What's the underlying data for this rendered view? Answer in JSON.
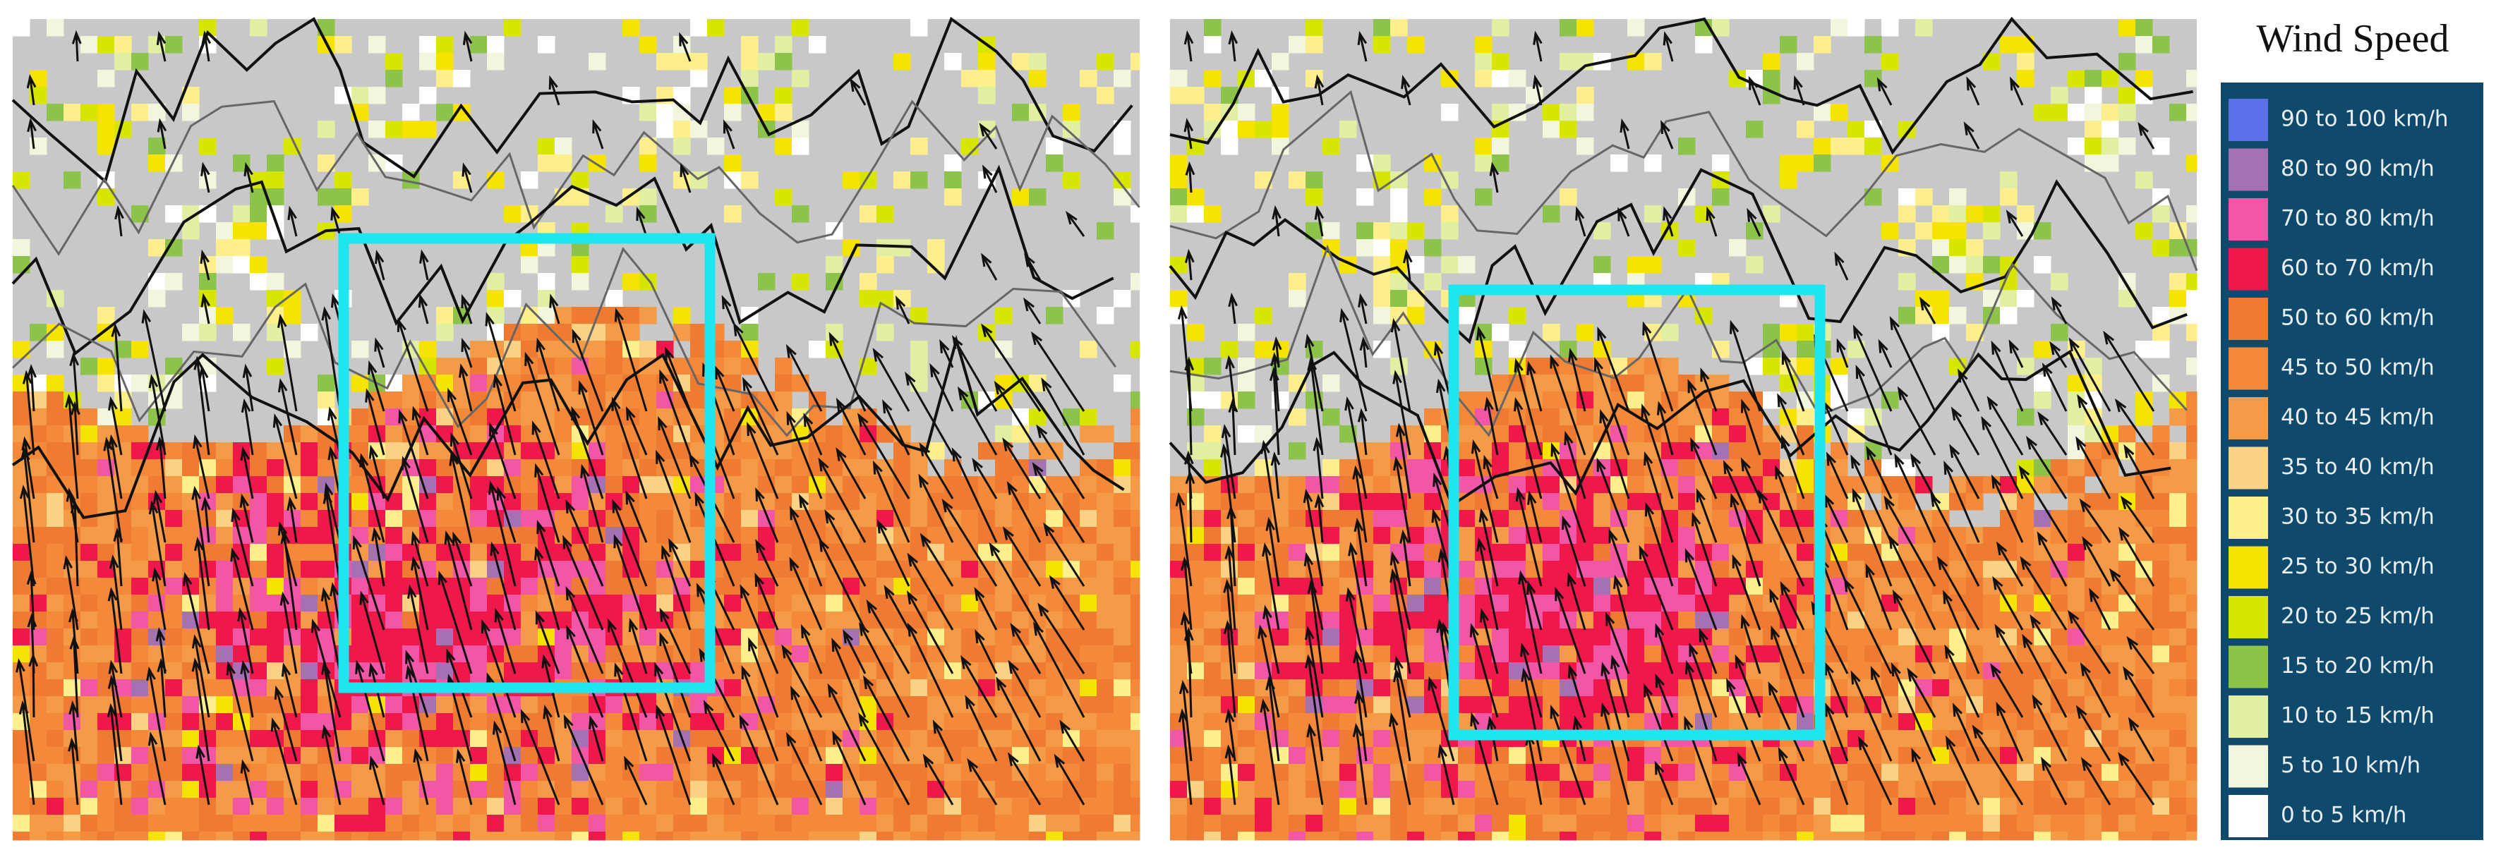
{
  "legend": {
    "title": "Wind Speed",
    "items": [
      {
        "label": "90 to 100 km/h",
        "color": "#5b6fe8"
      },
      {
        "label": "80 to 90 km/h",
        "color": "#a472b4"
      },
      {
        "label": "70 to 80 km/h",
        "color": "#f256a6"
      },
      {
        "label": "60 to 70 km/h",
        "color": "#f0174b"
      },
      {
        "label": "50 to 60 km/h",
        "color": "#ef7b32"
      },
      {
        "label": "45 to 50 km/h",
        "color": "#f4893a"
      },
      {
        "label": "40 to 45 km/h",
        "color": "#f59a46"
      },
      {
        "label": "35 to 40 km/h",
        "color": "#fbd184"
      },
      {
        "label": "30 to 35 km/h",
        "color": "#fdf08c"
      },
      {
        "label": "25 to 30 km/h",
        "color": "#f6e400"
      },
      {
        "label": "20 to 25 km/h",
        "color": "#d6e600"
      },
      {
        "label": "15 to 20 km/h",
        "color": "#8dc24b"
      },
      {
        "label": "10 to 15 km/h",
        "color": "#e0efa2"
      },
      {
        "label": "5 to 10 km/h",
        "color": "#f1f6dc"
      },
      {
        "label": "0 to 5 km/h",
        "color": "#ffffff"
      }
    ]
  }
}
